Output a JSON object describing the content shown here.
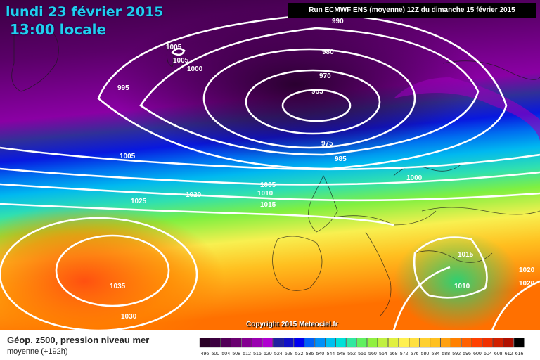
{
  "header": {
    "date": "lundi 23 février 2015",
    "time": "13:00 locale",
    "run": "Run ECMWF ENS (moyenne) 12Z du dimanche 15 février 2015"
  },
  "map": {
    "copyright": "Copyright 2015 Meteociel.fr",
    "isobar_labels": [
      "990",
      "1005",
      "1005",
      "1000",
      "980",
      "970",
      "965",
      "995",
      "975",
      "985",
      "1005",
      "1000",
      "1005",
      "1010",
      "1015",
      "1020",
      "1025",
      "1035",
      "1030",
      "1015",
      "1010",
      "1020",
      "1020"
    ]
  },
  "footer": {
    "product": "Géop. z500, pression niveau mer",
    "subproduct": "moyenne  (+192h)"
  },
  "legend": {
    "values": [
      "496",
      "500",
      "504",
      "508",
      "512",
      "516",
      "520",
      "524",
      "528",
      "532",
      "536",
      "540",
      "544",
      "548",
      "552",
      "556",
      "560",
      "564",
      "568",
      "572",
      "576",
      "580",
      "584",
      "588",
      "592",
      "596",
      "600",
      "604",
      "608",
      "612",
      "616"
    ],
    "colors": [
      "#2a0026",
      "#3c0040",
      "#520058",
      "#6a0070",
      "#840090",
      "#9a00b0",
      "#b000d0",
      "#2020a0",
      "#1010c8",
      "#0000f0",
      "#0060f8",
      "#0090f8",
      "#00c0f0",
      "#00e0d8",
      "#30e8a0",
      "#60f060",
      "#90f040",
      "#c0f040",
      "#e0f040",
      "#fff050",
      "#ffe040",
      "#ffd030",
      "#ffc020",
      "#ffa010",
      "#ff8000",
      "#ff6000",
      "#ff4000",
      "#f03000",
      "#d02000",
      "#b01000",
      "#000000"
    ]
  }
}
